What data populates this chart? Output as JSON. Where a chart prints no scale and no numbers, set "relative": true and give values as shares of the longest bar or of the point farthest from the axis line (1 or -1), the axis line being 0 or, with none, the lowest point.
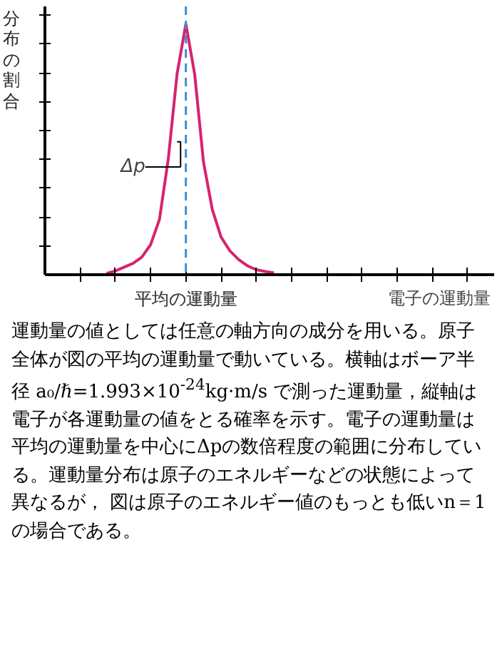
{
  "chart_data": {
    "type": "line",
    "relative": true,
    "ylabel": "分布の割合",
    "categories": [
      null,
      null,
      null,
      null,
      null,
      null,
      null,
      null,
      null,
      null,
      null,
      null,
      null,
      null,
      null,
      null,
      null,
      null,
      null,
      null
    ],
    "series": [
      {
        "color": "#d6246e",
        "values": [
          0.005,
          0.015,
          0.03,
          0.045,
          0.07,
          0.12,
          0.22,
          0.46,
          0.8,
          1.0,
          0.8,
          0.45,
          0.26,
          0.15,
          0.095,
          0.06,
          0.035,
          0.02,
          0.013,
          0.007
        ]
      }
    ],
    "annotations": [
      "平均の運動量",
      "Δp",
      "電子の運動量",
      "運動量の値としては任意の軸方向の成分を用いる。原子全体が図の平均の運動量で動いている。横軸はボーア半径 a₀/ℏ=1.993×10$^{-24}$kg·m/s で測った運動量，縦軸は電子が各運動量の値をとる確率を示す。電子の運動量は平均の運動量を中心にΔpの数倍程度の範囲に分布している。運動量分布は原子のエネルギーなどの状態によって異なるが， 図は原子のエネルギー値のもっとも低いn＝1の場合である。"
    ],
    "grid": false
  }
}
